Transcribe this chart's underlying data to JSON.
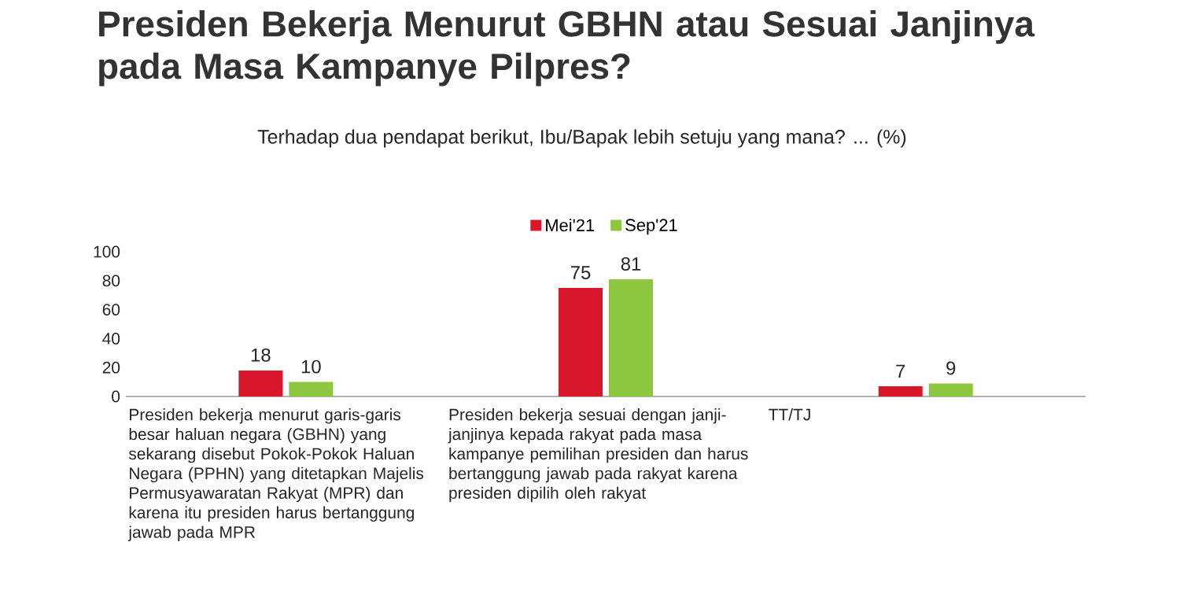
{
  "chart_data": {
    "type": "bar",
    "title": "Presiden Bekerja Menurut GBHN atau Sesuai Janjinya pada Masa Kampanye Pilpres?",
    "subtitle": "Terhadap dua pendapat berikut, Ibu/Bapak lebih setuju yang mana? ... (%)",
    "categories": [
      "Presiden bekerja menurut garis-garis besar haluan negara (GBHN) yang sekarang disebut Pokok-Pokok Haluan Negara (PPHN) yang ditetapkan Majelis Permusyawaratan Rakyat (MPR) dan karena itu presiden harus bertanggung jawab pada MPR",
      "Presiden bekerja sesuai dengan janji-janjinya kepada rakyat pada masa kampanye pemilihan presiden dan harus bertanggung jawab pada rakyat karena presiden dipilih oleh rakyat",
      "TT/TJ"
    ],
    "series": [
      {
        "name": "Mei'21",
        "color": "#d7182a",
        "values": [
          18,
          75,
          7
        ]
      },
      {
        "name": "Sep'21",
        "color": "#8dc63f",
        "values": [
          10,
          81,
          9
        ]
      }
    ],
    "ylim": [
      0,
      100
    ],
    "yticks": [
      0,
      20,
      40,
      60,
      80,
      100
    ],
    "grid": false,
    "legend": "top",
    "data_labels": true
  }
}
